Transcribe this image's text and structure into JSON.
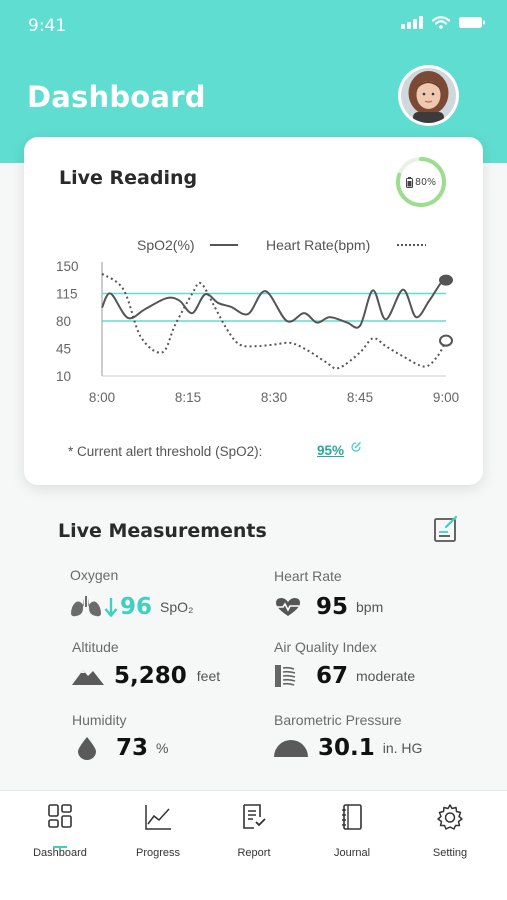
{
  "status": {
    "time": "9:41"
  },
  "header": {
    "title": "Dashboard"
  },
  "live_reading": {
    "title": "Live Reading",
    "battery": "80%",
    "battery_fraction": 0.8,
    "legend": {
      "spo2": "SpO2(%)",
      "heart_rate": "Heart Rate(bpm)"
    },
    "threshold_label": "* Current alert threshold (SpO2):",
    "threshold_value": "95%"
  },
  "chart_data": {
    "type": "line",
    "x": [
      "8:00",
      "8:15",
      "8:30",
      "8:45",
      "9:00"
    ],
    "y_ticks": [
      150,
      115,
      80,
      45,
      10
    ],
    "ylim": [
      10,
      150
    ],
    "reference_lines": [
      115,
      80
    ],
    "series": [
      {
        "name": "SpO2(%)",
        "style": "solid",
        "points": [
          [
            0,
            97
          ],
          [
            2,
            115
          ],
          [
            6,
            84
          ],
          [
            10,
            95
          ],
          [
            15,
            109
          ],
          [
            18,
            106
          ],
          [
            21,
            90
          ],
          [
            24,
            114
          ],
          [
            27,
            103
          ],
          [
            30,
            98
          ],
          [
            34,
            89
          ],
          [
            38,
            118
          ],
          [
            43,
            80
          ],
          [
            47,
            90
          ],
          [
            50,
            78
          ],
          [
            53,
            85
          ],
          [
            57,
            78
          ],
          [
            60,
            74
          ],
          [
            63,
            119
          ],
          [
            66,
            82
          ],
          [
            70,
            120
          ],
          [
            73,
            85
          ],
          [
            76,
            105
          ],
          [
            79,
            130
          ],
          [
            80,
            132
          ]
        ]
      },
      {
        "name": "Heart Rate(bpm)",
        "style": "dotted",
        "points": [
          [
            0,
            140
          ],
          [
            5,
            120
          ],
          [
            9,
            60
          ],
          [
            14,
            40
          ],
          [
            17,
            75
          ],
          [
            21,
            115
          ],
          [
            23,
            128
          ],
          [
            26,
            100
          ],
          [
            29,
            70
          ],
          [
            32,
            50
          ],
          [
            36,
            48
          ],
          [
            40,
            50
          ],
          [
            44,
            52
          ],
          [
            48,
            42
          ],
          [
            52,
            28
          ],
          [
            55,
            20
          ],
          [
            60,
            40
          ],
          [
            63,
            58
          ],
          [
            66,
            48
          ],
          [
            70,
            35
          ],
          [
            75,
            22
          ],
          [
            78,
            35
          ],
          [
            80,
            55
          ]
        ]
      }
    ]
  },
  "live_measurements": {
    "title": "Live Measurements",
    "items": [
      {
        "label": "Oxygen",
        "value": "96",
        "unit": "SpO₂",
        "icon": "lungs-icon"
      },
      {
        "label": "Heart Rate",
        "value": "95",
        "unit": "bpm",
        "icon": "heart-pulse-icon"
      },
      {
        "label": "Altitude",
        "value": "5,280",
        "unit": "feet",
        "icon": "mountain-icon"
      },
      {
        "label": "Air Quality Index",
        "value": "67",
        "unit": "moderate",
        "icon": "air-quality-icon"
      },
      {
        "label": "Humidity",
        "value": "73",
        "unit": "%",
        "icon": "water-drop-icon"
      },
      {
        "label": "Barometric Pressure",
        "value": "30.1",
        "unit": "in. HG",
        "icon": "barometer-icon"
      }
    ]
  },
  "tabs": [
    {
      "label": "Dashboard",
      "icon": "dashboard-icon",
      "active": true
    },
    {
      "label": "Progress",
      "icon": "chart-icon"
    },
    {
      "label": "Report",
      "icon": "report-icon"
    },
    {
      "label": "Journal",
      "icon": "journal-icon"
    },
    {
      "label": "Setting",
      "icon": "gear-icon"
    }
  ],
  "colors": {
    "accent": "#5fddd0",
    "teal": "#3fd0c1",
    "battery": "#9ddd8f"
  }
}
